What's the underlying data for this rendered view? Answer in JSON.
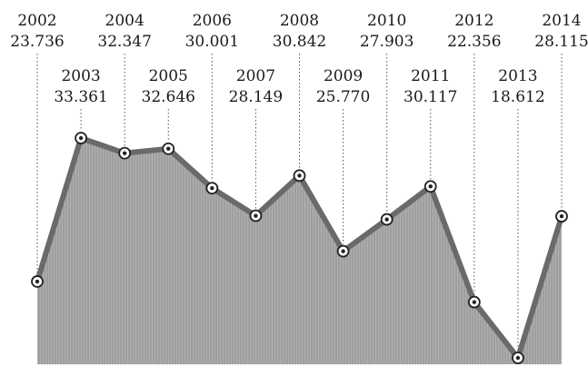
{
  "chart_data": {
    "type": "area",
    "x": [
      "2002",
      "2003",
      "2004",
      "2005",
      "2006",
      "2007",
      "2008",
      "2009",
      "2010",
      "2011",
      "2012",
      "2013",
      "2014"
    ],
    "values": [
      23.736,
      33.361,
      32.347,
      32.646,
      30.001,
      28.149,
      30.842,
      25.77,
      27.903,
      30.117,
      22.356,
      18.612,
      28.115
    ],
    "value_labels": [
      "23.736",
      "33.361",
      "32.347",
      "32.646",
      "30.001",
      "28.149",
      "30.842",
      "25.770",
      "27.903",
      "30.117",
      "22.356",
      "18.612",
      "28.115"
    ],
    "title": "",
    "xlabel": "",
    "ylabel": "",
    "grid": false,
    "legend": "none",
    "colors": {
      "area": "#a8a8a8",
      "line": "#6a6a6a",
      "marker": "#222222"
    }
  }
}
